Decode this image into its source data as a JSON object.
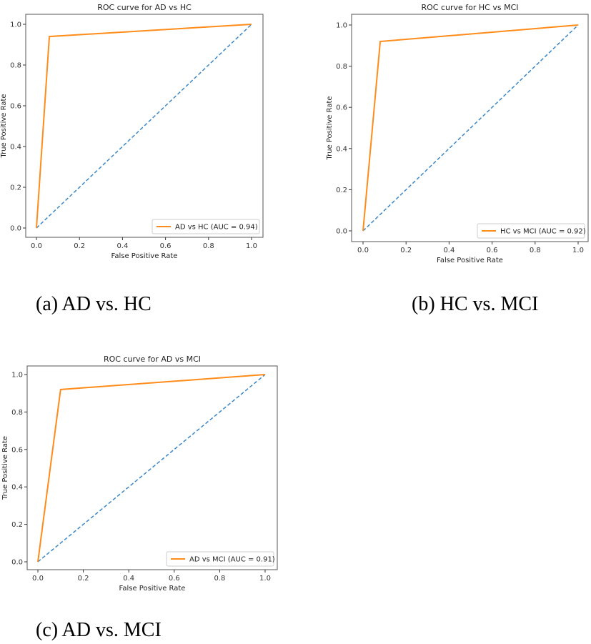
{
  "captions": [
    "(a) AD vs. HC",
    "(b) HC vs. MCI",
    "(c) AD vs. MCI"
  ],
  "colors": {
    "roc": "#ff8c1a",
    "chance": "#3a87c8"
  },
  "chart_data": [
    {
      "type": "line",
      "title": "ROC curve for AD vs HC",
      "xlabel": "False Positive Rate",
      "ylabel": "True Positive Rate",
      "xlim": [
        0,
        1
      ],
      "ylim": [
        0,
        1
      ],
      "xticks": [
        "0.0",
        "0.2",
        "0.4",
        "0.6",
        "0.8",
        "1.0"
      ],
      "yticks": [
        "0.0",
        "0.2",
        "0.4",
        "0.6",
        "0.8",
        "1.0"
      ],
      "legend": "bottom-right",
      "series": [
        {
          "name": "AD vs HC (AUC =  0.94)",
          "x": [
            0,
            0.06,
            1
          ],
          "y": [
            0,
            0.94,
            1
          ],
          "style": "solid"
        },
        {
          "x": [
            0,
            1
          ],
          "y": [
            0,
            1
          ],
          "style": "dashed"
        }
      ]
    },
    {
      "type": "line",
      "title": "ROC curve for HC vs MCI",
      "xlabel": "False Positive Rate",
      "ylabel": "True Positive Rate",
      "xlim": [
        0,
        1
      ],
      "ylim": [
        0,
        1
      ],
      "xticks": [
        "0.0",
        "0.2",
        "0.4",
        "0.6",
        "0.8",
        "1.0"
      ],
      "yticks": [
        "0.0",
        "0.2",
        "0.4",
        "0.6",
        "0.8",
        "1.0"
      ],
      "legend": "bottom-right",
      "series": [
        {
          "name": "HC vs MCI (AUC =  0.92)",
          "x": [
            0,
            0.08,
            1
          ],
          "y": [
            0,
            0.92,
            1
          ],
          "style": "solid"
        },
        {
          "x": [
            0,
            1
          ],
          "y": [
            0,
            1
          ],
          "style": "dashed"
        }
      ]
    },
    {
      "type": "line",
      "title": "ROC curve for AD vs MCI",
      "xlabel": "False Positive Rate",
      "ylabel": "True Positive Rate",
      "xlim": [
        0,
        1
      ],
      "ylim": [
        0,
        1
      ],
      "xticks": [
        "0.0",
        "0.2",
        "0.4",
        "0.6",
        "0.8",
        "1.0"
      ],
      "yticks": [
        "0.0",
        "0.2",
        "0.4",
        "0.6",
        "0.8",
        "1.0"
      ],
      "legend": "bottom-right",
      "series": [
        {
          "name": "AD vs MCI (AUC =  0.91)",
          "x": [
            0,
            0.1,
            1
          ],
          "y": [
            0,
            0.92,
            1
          ],
          "style": "solid"
        },
        {
          "x": [
            0,
            1
          ],
          "y": [
            0,
            1
          ],
          "style": "dashed"
        }
      ]
    }
  ]
}
